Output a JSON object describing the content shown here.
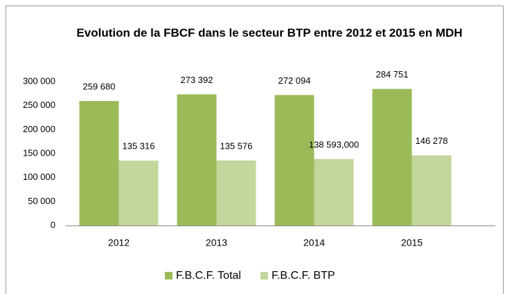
{
  "chart_data": {
    "type": "bar",
    "title": "Evolution de la FBCF dans le secteur BTP entre 2012 et 2015 en MDH",
    "categories": [
      "2012",
      "2013",
      "2014",
      "2015"
    ],
    "series": [
      {
        "name": "F.B.C.F. Total",
        "color": "#9bbb59",
        "values": [
          259680,
          273392,
          272094,
          284751
        ],
        "value_labels": [
          "259 680",
          "273 392",
          "272 094",
          "284 751"
        ]
      },
      {
        "name": "F.B.C.F. BTP",
        "color": "#c3d69b",
        "values": [
          135316,
          135576,
          138593,
          146278
        ],
        "value_labels": [
          "135 316",
          "135 576",
          "138 593,000",
          "146 278"
        ]
      }
    ],
    "ylim": [
      0,
      300000
    ],
    "yticks": [
      {
        "value": 0,
        "label": "0"
      },
      {
        "value": 50000,
        "label": "50 000"
      },
      {
        "value": 100000,
        "label": "100 000"
      },
      {
        "value": 150000,
        "label": "150 000"
      },
      {
        "value": 200000,
        "label": "200 000"
      },
      {
        "value": 250000,
        "label": "250 000"
      },
      {
        "value": 300000,
        "label": "300 000"
      }
    ],
    "grid": false,
    "legend": "bottom"
  }
}
